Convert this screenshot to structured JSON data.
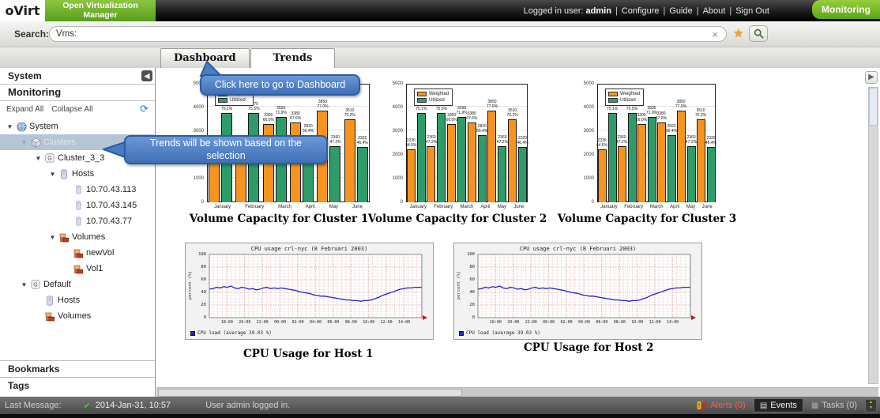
{
  "topbar": {
    "logo": "oVirt",
    "product": "Open Virtualization Manager",
    "user_label": "Logged in user:",
    "user": "admin",
    "separator": "|",
    "links": [
      "Configure",
      "Guide",
      "About",
      "Sign Out"
    ],
    "badge": "Monitoring"
  },
  "search": {
    "label": "Search:",
    "value": "Vms:"
  },
  "icons": {
    "clear": "×",
    "star": "★",
    "refresh": "⟳",
    "check": "✔",
    "collapse_left": "◀",
    "expand_right": "▶",
    "expander_open": "▼",
    "sort_up": "▲",
    "sort_down": "▼",
    "alert_mark": "!",
    "events_glyph": "▤",
    "tasks_glyph": "▦"
  },
  "tabs": [
    {
      "label": "Dashboard",
      "active": false
    },
    {
      "label": "Trends",
      "active": true
    }
  ],
  "sidebar": {
    "system_header": "System",
    "monitoring_header": "Monitoring",
    "expand_all": "Expand All",
    "collapse_all": "Collapse All",
    "bookmarks_header": "Bookmarks",
    "tags_header": "Tags",
    "tree": [
      {
        "label": "System",
        "icon": "globe",
        "level": 0,
        "expander": true,
        "selected": false
      },
      {
        "label": "Clusters",
        "icon": "cluster",
        "level": 1,
        "expander": true,
        "selected": true
      },
      {
        "label": "Cluster_3_3",
        "icon": "gbadge",
        "level": 2,
        "expander": true,
        "selected": false
      },
      {
        "label": "Hosts",
        "icon": "host",
        "level": 3,
        "expander": true,
        "selected": false
      },
      {
        "label": "10.70.43.113",
        "icon": "hostsmall",
        "level": 4,
        "expander": false,
        "selected": false
      },
      {
        "label": "10.70.43.145",
        "icon": "hostsmall",
        "level": 4,
        "expander": false,
        "selected": false
      },
      {
        "label": "10.70.43.77",
        "icon": "hostsmall",
        "level": 4,
        "expander": false,
        "selected": false
      },
      {
        "label": "Volumes",
        "icon": "volume",
        "level": 3,
        "expander": true,
        "selected": false
      },
      {
        "label": "newVol",
        "icon": "volume",
        "level": 4,
        "expander": false,
        "selected": false
      },
      {
        "label": "Vol1",
        "icon": "volume",
        "level": 4,
        "expander": false,
        "selected": false
      },
      {
        "label": "Default",
        "icon": "gbadge",
        "level": 1,
        "expander": true,
        "selected": false
      },
      {
        "label": "Hosts",
        "icon": "host",
        "level": 2,
        "expander": false,
        "selected": false
      },
      {
        "label": "Volumes",
        "icon": "volume",
        "level": 2,
        "expander": false,
        "selected": false
      }
    ]
  },
  "tooltips": {
    "dashboard": "Click here to go to Dashboard",
    "trends": "Trends will be shown based on the selection"
  },
  "statusbar": {
    "last_message_label": "Last Message:",
    "timestamp": "2014-Jan-31, 10:57",
    "message": "User admin logged in.",
    "alerts": "Alerts (0)",
    "events": "Events",
    "tasks": "Tasks (0)"
  },
  "chart_data": [
    {
      "type": "bar",
      "slot": "bc0",
      "title": "Volume Capacity for Cluster 1",
      "categories": [
        "January",
        "February",
        "March",
        "April",
        "May",
        "June"
      ],
      "series": [
        {
          "name": "Weighted",
          "color": "#F79420",
          "values": [
            2230,
            2360,
            3300,
            3380,
            3850,
            3510
          ],
          "pcts": [
            "44.6%",
            "47.2%",
            "66.0%",
            "67.6%",
            "77.0%",
            "70.2%"
          ]
        },
        {
          "name": "Utilized",
          "color": "#2E9C68",
          "values": [
            3755,
            3775,
            3595,
            2820,
            2360,
            2320
          ],
          "pcts": [
            "75.1%",
            "75.5%",
            "71.9%",
            "56.4%",
            "47.2%",
            "46.4%"
          ]
        }
      ],
      "ylim": [
        0,
        5000
      ],
      "yticks": [
        0,
        1000,
        2000,
        3000,
        4000,
        5000
      ],
      "grid": true,
      "legend_position": "top-left"
    },
    {
      "type": "bar",
      "slot": "bc1",
      "title": "Volume Capacity for Cluster 2",
      "categories": [
        "January",
        "February",
        "March",
        "April",
        "May",
        "June"
      ],
      "series": [
        {
          "name": "Weighted",
          "color": "#F79420",
          "values": [
            2230,
            2360,
            3300,
            3380,
            3850,
            3510
          ],
          "pcts": [
            "44.6%",
            "47.2%",
            "66.0%",
            "67.6%",
            "77.0%",
            "70.2%"
          ]
        },
        {
          "name": "Utilized",
          "color": "#2E9C68",
          "values": [
            3755,
            3775,
            3595,
            2820,
            2360,
            2320
          ],
          "pcts": [
            "75.1%",
            "75.5%",
            "71.9%",
            "56.4%",
            "47.2%",
            "46.4%"
          ]
        }
      ],
      "ylim": [
        0,
        5000
      ],
      "yticks": [
        0,
        1000,
        2000,
        3000,
        4000,
        5000
      ],
      "grid": true,
      "legend_position": "top-left"
    },
    {
      "type": "bar",
      "slot": "bc2",
      "title": "Volume Capacity for Cluster 3",
      "categories": [
        "January",
        "February",
        "March",
        "April",
        "May",
        "June"
      ],
      "series": [
        {
          "name": "Weighted",
          "color": "#F79420",
          "values": [
            2230,
            2360,
            3300,
            3380,
            3850,
            3510
          ],
          "pcts": [
            "44.6%",
            "47.2%",
            "66.0%",
            "67.6%",
            "77.0%",
            "70.2%"
          ]
        },
        {
          "name": "Utilized",
          "color": "#2E9C68",
          "values": [
            3755,
            3775,
            3595,
            2820,
            2360,
            2320
          ],
          "pcts": [
            "75.1%",
            "75.5%",
            "71.9%",
            "56.4%",
            "47.2%",
            "46.4%"
          ]
        }
      ],
      "ylim": [
        0,
        5000
      ],
      "yticks": [
        0,
        1000,
        2000,
        3000,
        4000,
        5000
      ],
      "grid": true,
      "legend_position": "top-left"
    },
    {
      "type": "line",
      "slot": "lc0",
      "caption_slot": "cap0",
      "title": "CPU usage crl-nyc (8 Februari 2003)",
      "caption": "CPU Usage for Host 1",
      "ylabel": "percent (%)",
      "legend": "CPU load  (average 39.03 %)",
      "color": "#2626CC",
      "ylim": [
        0,
        100
      ],
      "yticks": [
        0,
        20,
        40,
        60,
        80,
        100
      ],
      "xticks": [
        "18:00",
        "20:00",
        "22:00",
        "00:00",
        "02:00",
        "04:00",
        "06:00",
        "08:00",
        "10:00",
        "12:00",
        "14:00"
      ],
      "grid": true,
      "legend_position": "bottom-left",
      "points": [
        45,
        46,
        48,
        47,
        49,
        48,
        50,
        47,
        46,
        48,
        47,
        45,
        46,
        44,
        45,
        47,
        48,
        46,
        47,
        46,
        47,
        46,
        45,
        44,
        43,
        41,
        40,
        39,
        38,
        36,
        35,
        34,
        34,
        33,
        32,
        31,
        30,
        29,
        28,
        28,
        27,
        27,
        26,
        27,
        27,
        28,
        30,
        32,
        35,
        37,
        39,
        41,
        43,
        45,
        46,
        47,
        47,
        48,
        48,
        48
      ]
    },
    {
      "type": "line",
      "slot": "lc1",
      "caption_slot": "cap1",
      "title": "CPU usage crl-nyc (8 Februari 2003)",
      "caption": "CPU Usage for Host 2",
      "ylabel": "percent (%)",
      "legend": "CPU load  (average 39.03 %)",
      "color": "#2626CC",
      "ylim": [
        0,
        100
      ],
      "yticks": [
        0,
        20,
        40,
        60,
        80,
        100
      ],
      "xticks": [
        "18:00",
        "20:00",
        "22:00",
        "00:00",
        "02:00",
        "04:00",
        "06:00",
        "08:00",
        "10:00",
        "12:00",
        "14:00"
      ],
      "grid": true,
      "legend_position": "bottom-left",
      "points": [
        45,
        46,
        48,
        47,
        49,
        48,
        50,
        47,
        46,
        48,
        47,
        45,
        46,
        44,
        45,
        47,
        48,
        46,
        47,
        46,
        47,
        46,
        45,
        44,
        43,
        41,
        40,
        39,
        38,
        36,
        35,
        34,
        34,
        33,
        32,
        31,
        30,
        29,
        28,
        28,
        27,
        27,
        26,
        27,
        27,
        28,
        30,
        32,
        35,
        37,
        39,
        41,
        43,
        45,
        46,
        47,
        47,
        48,
        48,
        48
      ]
    }
  ]
}
